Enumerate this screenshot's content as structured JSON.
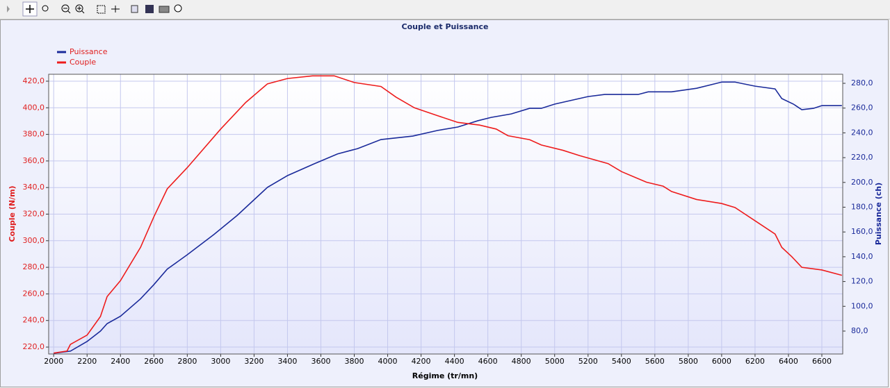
{
  "chart_data": {
    "type": "line",
    "title": "Couple et Puissance",
    "x_label": "Régime (tr/mn)",
    "y_label": "Couple (N/m)",
    "y2_label": "Puissance (ch)",
    "xlim": [
      1970,
      6725
    ],
    "xticks": [
      2000,
      2200,
      2400,
      2600,
      2800,
      3000,
      3200,
      3400,
      3600,
      3800,
      4000,
      4200,
      4400,
      4600,
      4800,
      5000,
      5200,
      5400,
      5600,
      5800,
      6000,
      6200,
      6400,
      6600
    ],
    "ylim": [
      214.8,
      425.2
    ],
    "yticks": [
      {
        "value": 220,
        "label": "220,0"
      },
      {
        "value": 240,
        "label": "240,0"
      },
      {
        "value": 260,
        "label": "260,0"
      },
      {
        "value": 280,
        "label": "280,0"
      },
      {
        "value": 300,
        "label": "300,0"
      },
      {
        "value": 320,
        "label": "320,0"
      },
      {
        "value": 340,
        "label": "340,0"
      },
      {
        "value": 360,
        "label": "360,0"
      },
      {
        "value": 380,
        "label": "380,0"
      },
      {
        "value": 400,
        "label": "400,0"
      },
      {
        "value": 420,
        "label": "420,0"
      }
    ],
    "y2lim": [
      61.5,
      287.3
    ],
    "y2ticks": [
      {
        "value": 80,
        "label": "80,0"
      },
      {
        "value": 100,
        "label": "100,0"
      },
      {
        "value": 120,
        "label": "120,0"
      },
      {
        "value": 140,
        "label": "140,0"
      },
      {
        "value": 160,
        "label": "160,0"
      },
      {
        "value": 180,
        "label": "180,0"
      },
      {
        "value": 200,
        "label": "200,0"
      },
      {
        "value": 220,
        "label": "220,0"
      },
      {
        "value": 240,
        "label": "240,0"
      },
      {
        "value": 260,
        "label": "260,0"
      },
      {
        "value": 280,
        "label": "280,0"
      }
    ],
    "grid": true,
    "legend": "top-left",
    "series": [
      {
        "name": "Puissance",
        "color": "#1a2a9a",
        "axis": "y2",
        "x": [
          2000,
          2100,
          2200,
          2280,
          2320,
          2400,
          2520,
          2600,
          2680,
          2800,
          2960,
          3100,
          3280,
          3400,
          3560,
          3700,
          3820,
          3960,
          4150,
          4300,
          4420,
          4540,
          4620,
          4740,
          4850,
          4920,
          5000,
          5200,
          5300,
          5500,
          5560,
          5700,
          5850,
          6000,
          6080,
          6200,
          6320,
          6360,
          6430,
          6480,
          6550,
          6600,
          6720
        ],
        "values": [
          62.1,
          63.8,
          71.6,
          80,
          86,
          92,
          106,
          117.5,
          130,
          141.6,
          158,
          173.5,
          196,
          205.5,
          215,
          223,
          227.3,
          234.6,
          237.4,
          242,
          244.7,
          249.8,
          252.5,
          255.3,
          259.8,
          259.8,
          263.2,
          269.3,
          271,
          271,
          273.1,
          273.1,
          276,
          281,
          281,
          277.7,
          275.5,
          267.7,
          263.2,
          258.7,
          259.8,
          262,
          262
        ]
      },
      {
        "name": "Couple",
        "color": "#ee1c1c",
        "axis": "y",
        "x": [
          2000,
          2080,
          2100,
          2200,
          2280,
          2320,
          2400,
          2520,
          2600,
          2680,
          2800,
          3000,
          3150,
          3280,
          3400,
          3550,
          3680,
          3800,
          3960,
          4050,
          4160,
          4300,
          4420,
          4550,
          4650,
          4720,
          4850,
          4920,
          5050,
          5150,
          5320,
          5400,
          5550,
          5650,
          5700,
          5850,
          6000,
          6080,
          6200,
          6320,
          6360,
          6420,
          6480,
          6600,
          6720
        ],
        "values": [
          215.5,
          217,
          222,
          229,
          243,
          258,
          270,
          295,
          318,
          339,
          355,
          384,
          404,
          418,
          422,
          424,
          424,
          419,
          416,
          408,
          400,
          394,
          389,
          387,
          384,
          379,
          376,
          372,
          368,
          364,
          358,
          352,
          344,
          341,
          337,
          331,
          328,
          325,
          315,
          305,
          295,
          288,
          280,
          278,
          274
        ]
      }
    ]
  }
}
